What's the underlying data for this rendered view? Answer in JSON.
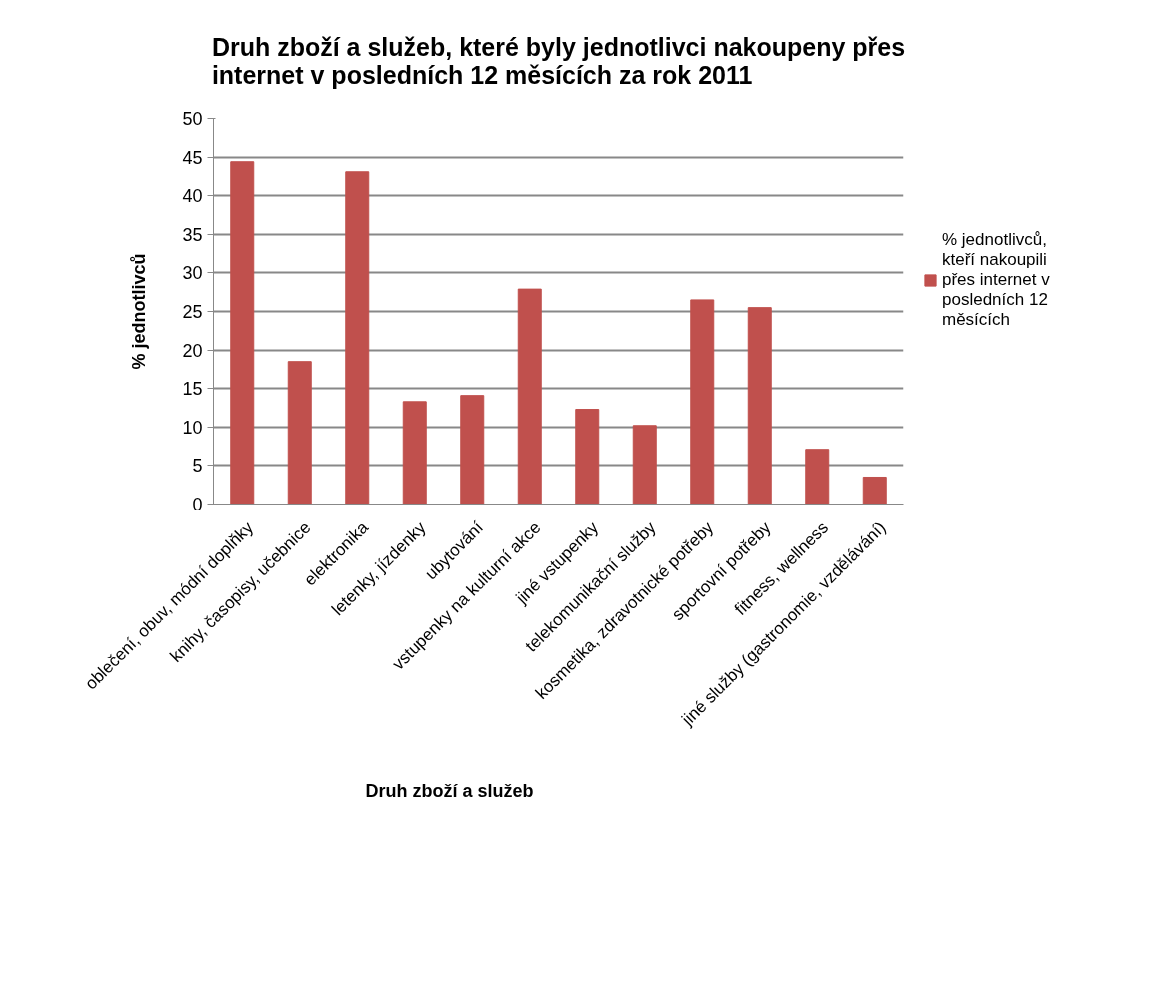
{
  "chart_data": {
    "type": "bar",
    "title": "Druh zboží a služeb, které byly jednotlivci nakoupeny přes internet v posledních 12 měsících za rok 2011",
    "xlabel": "Druh zboží  a služeb",
    "ylabel": "% jednotlivců",
    "categories": [
      "oblečení, obuv, módní doplňky",
      "knihy, časopisy, učebnice",
      "elektronika",
      "letenky, jízdenky",
      "ubytování",
      "vstupenky na kulturní akce",
      "jiné vstupenky",
      "telekomunikační služby",
      "kosmetika, zdravotnické potřeby",
      "sportovní potřeby",
      "fitness, wellness",
      "jiné služby (gastronomie, vzdělávání)"
    ],
    "series": [
      {
        "name": "% jednotlivců, kteří nakoupili přes internet v posledních 12 měsících",
        "color": "#c0504d",
        "values": [
          44.4,
          18.5,
          43.1,
          13.3,
          14.1,
          27.9,
          12.3,
          10.2,
          26.5,
          25.5,
          7.1,
          3.5
        ]
      }
    ],
    "ylim": [
      0,
      50
    ],
    "yticks": [
      0,
      5,
      10,
      15,
      20,
      25,
      30,
      35,
      40,
      45,
      50
    ],
    "grid": "y",
    "legend": "right"
  }
}
